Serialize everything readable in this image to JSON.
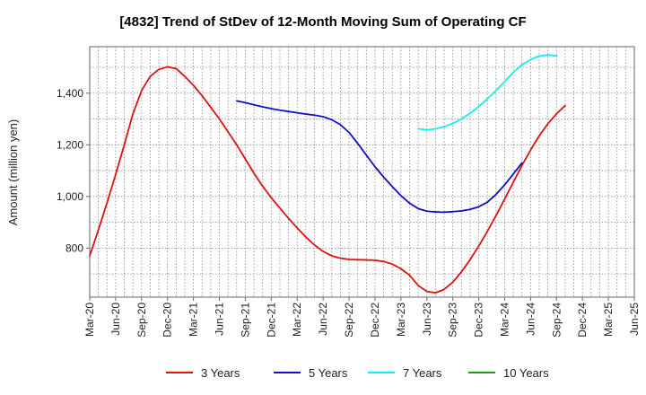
{
  "chart_data": {
    "type": "line",
    "title": "[4832]  Trend of StDev of 12-Month Moving Sum of Operating CF",
    "ylabel": "Amount (million yen)",
    "xlabel": "",
    "x_tick_labels": [
      "Mar-20",
      "Jun-20",
      "Sep-20",
      "Dec-20",
      "Mar-21",
      "Jun-21",
      "Sep-21",
      "Dec-21",
      "Mar-22",
      "Jun-22",
      "Sep-22",
      "Dec-22",
      "Mar-23",
      "Jun-23",
      "Sep-23",
      "Dec-23",
      "Mar-24",
      "Jun-24",
      "Sep-24",
      "Dec-24",
      "Mar-25",
      "Jun-25"
    ],
    "y_ticks": [
      800,
      1000,
      1200,
      1400
    ],
    "y_tick_labels": [
      "800",
      "1,000",
      "1,200",
      "1,400"
    ],
    "ylim": [
      610,
      1580
    ],
    "grid": true,
    "legend_position": "bottom",
    "series": [
      {
        "name": "3 Years",
        "color": "#dd1111",
        "points": [
          [
            0,
            770
          ],
          [
            1,
            870
          ],
          [
            2,
            975
          ],
          [
            3,
            1085
          ],
          [
            4,
            1200
          ],
          [
            5,
            1320
          ],
          [
            6,
            1410
          ],
          [
            7,
            1465
          ],
          [
            8,
            1492
          ],
          [
            9,
            1502
          ],
          [
            10,
            1495
          ],
          [
            11,
            1465
          ],
          [
            12,
            1430
          ],
          [
            13,
            1390
          ],
          [
            14,
            1345
          ],
          [
            15,
            1300
          ],
          [
            16,
            1250
          ],
          [
            17,
            1200
          ],
          [
            18,
            1145
          ],
          [
            19,
            1090
          ],
          [
            20,
            1040
          ],
          [
            21,
            995
          ],
          [
            22,
            955
          ],
          [
            23,
            915
          ],
          [
            24,
            878
          ],
          [
            25,
            843
          ],
          [
            26,
            812
          ],
          [
            27,
            787
          ],
          [
            28,
            770
          ],
          [
            29,
            761
          ],
          [
            30,
            756
          ],
          [
            31,
            755
          ],
          [
            32,
            754
          ],
          [
            33,
            753
          ],
          [
            34,
            748
          ],
          [
            35,
            738
          ],
          [
            36,
            720
          ],
          [
            37,
            695
          ],
          [
            38,
            655
          ],
          [
            39,
            632
          ],
          [
            40,
            627
          ],
          [
            41,
            640
          ],
          [
            42,
            668
          ],
          [
            43,
            708
          ],
          [
            44,
            755
          ],
          [
            45,
            808
          ],
          [
            46,
            865
          ],
          [
            47,
            926
          ],
          [
            48,
            990
          ],
          [
            49,
            1055
          ],
          [
            50,
            1120
          ],
          [
            51,
            1180
          ],
          [
            52,
            1235
          ],
          [
            53,
            1282
          ],
          [
            54,
            1320
          ],
          [
            55,
            1352
          ]
        ]
      },
      {
        "name": "5 Years",
        "color": "#1111cc",
        "points": [
          [
            17,
            1370
          ],
          [
            18,
            1363
          ],
          [
            19,
            1355
          ],
          [
            20,
            1347
          ],
          [
            21,
            1340
          ],
          [
            22,
            1334
          ],
          [
            23,
            1329
          ],
          [
            24,
            1324
          ],
          [
            25,
            1319
          ],
          [
            26,
            1315
          ],
          [
            27,
            1309
          ],
          [
            28,
            1297
          ],
          [
            29,
            1278
          ],
          [
            30,
            1248
          ],
          [
            31,
            1205
          ],
          [
            32,
            1160
          ],
          [
            33,
            1115
          ],
          [
            34,
            1075
          ],
          [
            35,
            1038
          ],
          [
            36,
            1003
          ],
          [
            37,
            974
          ],
          [
            38,
            953
          ],
          [
            39,
            943
          ],
          [
            40,
            940
          ],
          [
            41,
            939
          ],
          [
            42,
            941
          ],
          [
            43,
            944
          ],
          [
            44,
            950
          ],
          [
            45,
            960
          ],
          [
            46,
            978
          ],
          [
            47,
            1008
          ],
          [
            48,
            1045
          ],
          [
            49,
            1087
          ],
          [
            50,
            1130
          ]
        ]
      },
      {
        "name": "7 Years",
        "color": "#11eeee",
        "points": [
          [
            38,
            1262
          ],
          [
            39,
            1258
          ],
          [
            40,
            1262
          ],
          [
            41,
            1270
          ],
          [
            42,
            1283
          ],
          [
            43,
            1300
          ],
          [
            44,
            1322
          ],
          [
            45,
            1348
          ],
          [
            46,
            1378
          ],
          [
            47,
            1410
          ],
          [
            48,
            1445
          ],
          [
            49,
            1480
          ],
          [
            50,
            1510
          ],
          [
            51,
            1530
          ],
          [
            52,
            1544
          ],
          [
            53,
            1548
          ],
          [
            54,
            1545
          ]
        ]
      },
      {
        "name": "10 Years",
        "color": "#229922",
        "points": []
      }
    ]
  }
}
